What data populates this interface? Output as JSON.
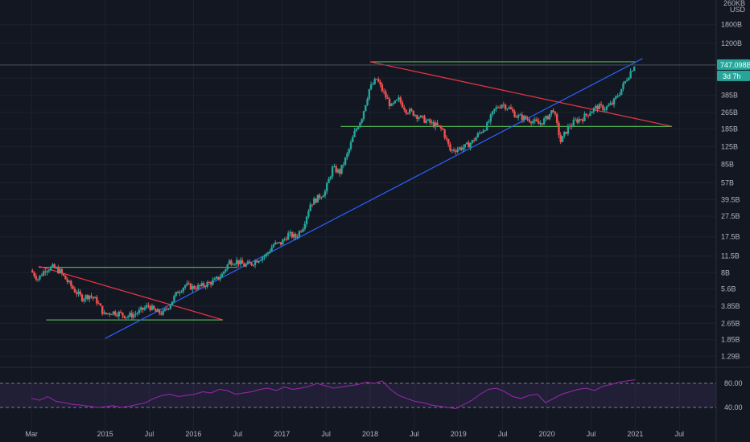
{
  "window": {
    "currency_top": "260KB",
    "currency": "USD"
  },
  "chart_data": {
    "type": "candlestick",
    "price_scale": "log",
    "y_ticks": [
      {
        "label": "1800B",
        "value": 1800
      },
      {
        "label": "1200B",
        "value": 1200
      },
      {
        "label": "560B",
        "value": 560
      },
      {
        "label": "385B",
        "value": 385
      },
      {
        "label": "265B",
        "value": 265
      },
      {
        "label": "185B",
        "value": 185
      },
      {
        "label": "125B",
        "value": 125
      },
      {
        "label": "85B",
        "value": 85
      },
      {
        "label": "57B",
        "value": 57
      },
      {
        "label": "39.5B",
        "value": 39.5
      },
      {
        "label": "27.5B",
        "value": 27.5
      },
      {
        "label": "17.5B",
        "value": 17.5
      },
      {
        "label": "11.5B",
        "value": 11.5
      },
      {
        "label": "8B",
        "value": 8
      },
      {
        "label": "5.6B",
        "value": 5.6
      },
      {
        "label": "3.85B",
        "value": 3.85
      },
      {
        "label": "2.65B",
        "value": 2.65
      },
      {
        "label": "1.85B",
        "value": 1.85
      },
      {
        "label": "1.29B",
        "value": 1.29
      }
    ],
    "x_ticks": [
      {
        "label": "Mar",
        "date": "2014-03"
      },
      {
        "label": "2015",
        "date": "2015-01"
      },
      {
        "label": "Jul",
        "date": "2015-07"
      },
      {
        "label": "2016",
        "date": "2016-01"
      },
      {
        "label": "Jul",
        "date": "2016-07"
      },
      {
        "label": "2017",
        "date": "2017-01"
      },
      {
        "label": "Jul",
        "date": "2017-07"
      },
      {
        "label": "2018",
        "date": "2018-01"
      },
      {
        "label": "Jul",
        "date": "2018-07"
      },
      {
        "label": "2019",
        "date": "2019-01"
      },
      {
        "label": "Jul",
        "date": "2019-07"
      },
      {
        "label": "2020",
        "date": "2020-01"
      },
      {
        "label": "Jul",
        "date": "2020-07"
      },
      {
        "label": "2021",
        "date": "2021-01"
      },
      {
        "label": "Jul",
        "date": "2021-07"
      }
    ],
    "x_range": [
      "2014-02",
      "2021-12"
    ],
    "y_range": [
      1.05,
      2500
    ],
    "current_price": {
      "label": "747.098B",
      "value": 747.1,
      "countdown": "3d 7h"
    },
    "price_path": [
      [
        "2014-03",
        8.4
      ],
      [
        "2014-04",
        7.0
      ],
      [
        "2014-05",
        8.6
      ],
      [
        "2014-06",
        9.0
      ],
      [
        "2014-07",
        8.2
      ],
      [
        "2014-08",
        6.6
      ],
      [
        "2014-09",
        5.4
      ],
      [
        "2014-10",
        4.6
      ],
      [
        "2014-11",
        4.9
      ],
      [
        "2014-12",
        4.3
      ],
      [
        "2015-01",
        3.2
      ],
      [
        "2015-02",
        3.4
      ],
      [
        "2015-03",
        3.3
      ],
      [
        "2015-04",
        3.1
      ],
      [
        "2015-05",
        3.2
      ],
      [
        "2015-06",
        3.5
      ],
      [
        "2015-07",
        3.9
      ],
      [
        "2015-08",
        3.4
      ],
      [
        "2015-09",
        3.3
      ],
      [
        "2015-10",
        4.1
      ],
      [
        "2015-11",
        5.3
      ],
      [
        "2015-12",
        6.1
      ],
      [
        "2016-01",
        5.8
      ],
      [
        "2016-02",
        5.9
      ],
      [
        "2016-03",
        6.3
      ],
      [
        "2016-04",
        6.7
      ],
      [
        "2016-05",
        7.7
      ],
      [
        "2016-06",
        10.2
      ],
      [
        "2016-07",
        10.3
      ],
      [
        "2016-08",
        9.4
      ],
      [
        "2016-09",
        9.8
      ],
      [
        "2016-10",
        10.9
      ],
      [
        "2016-11",
        11.8
      ],
      [
        "2016-12",
        14.8
      ],
      [
        "2017-01",
        15.2
      ],
      [
        "2017-02",
        18.5
      ],
      [
        "2017-03",
        17.4
      ],
      [
        "2017-04",
        22.0
      ],
      [
        "2017-05",
        36.0
      ],
      [
        "2017-06",
        41.0
      ],
      [
        "2017-07",
        47.0
      ],
      [
        "2017-08",
        78.0
      ],
      [
        "2017-09",
        72.0
      ],
      [
        "2017-10",
        105.0
      ],
      [
        "2017-11",
        170.0
      ],
      [
        "2017-12",
        240.0
      ],
      [
        "2018-01",
        440.0
      ],
      [
        "2018-02",
        550.0
      ],
      [
        "2018-03",
        400.0
      ],
      [
        "2018-04",
        300.0
      ],
      [
        "2018-05",
        350.0
      ],
      [
        "2018-06",
        280.0
      ],
      [
        "2018-07",
        260.0
      ],
      [
        "2018-08",
        235.0
      ],
      [
        "2018-09",
        215.0
      ],
      [
        "2018-10",
        200.0
      ],
      [
        "2018-11",
        180.0
      ],
      [
        "2018-12",
        115.0
      ],
      [
        "2019-01",
        120.0
      ],
      [
        "2019-02",
        125.0
      ],
      [
        "2019-03",
        140.0
      ],
      [
        "2019-04",
        170.0
      ],
      [
        "2019-05",
        200.0
      ],
      [
        "2019-06",
        280.0
      ],
      [
        "2019-07",
        320.0
      ],
      [
        "2019-08",
        290.0
      ],
      [
        "2019-09",
        245.0
      ],
      [
        "2019-10",
        235.0
      ],
      [
        "2019-11",
        225.0
      ],
      [
        "2019-12",
        205.0
      ],
      [
        "2020-01",
        230.0
      ],
      [
        "2020-02",
        285.0
      ],
      [
        "2020-03",
        140.0
      ],
      [
        "2020-04",
        190.0
      ],
      [
        "2020-05",
        220.0
      ],
      [
        "2020-06",
        235.0
      ],
      [
        "2020-07",
        270.0
      ],
      [
        "2020-08",
        300.0
      ],
      [
        "2020-09",
        290.0
      ],
      [
        "2020-10",
        320.0
      ],
      [
        "2020-11",
        410.0
      ],
      [
        "2020-12",
        560.0
      ],
      [
        "2021-01",
        747.1
      ]
    ],
    "drawings": [
      {
        "kind": "horizontal",
        "color": "#4caf50",
        "price": 9.0,
        "from": "2014-04",
        "to": "2016-07"
      },
      {
        "kind": "horizontal",
        "color": "#4caf50",
        "price": 2.85,
        "from": "2014-05",
        "to": "2016-05"
      },
      {
        "kind": "trend",
        "color": "#f23645",
        "p1": [
          "2014-04",
          9.2
        ],
        "p2": [
          "2016-05",
          2.85
        ]
      },
      {
        "kind": "horizontal",
        "color": "#4caf50",
        "price": 800,
        "from": "2018-01",
        "to": "2021-01"
      },
      {
        "kind": "horizontal",
        "color": "#4caf50",
        "price": 195,
        "from": "2017-09",
        "to": "2021-06"
      },
      {
        "kind": "trend",
        "color": "#f23645",
        "p1": [
          "2018-01",
          800
        ],
        "p2": [
          "2021-06",
          195
        ]
      },
      {
        "kind": "trend",
        "color": "#2962ff",
        "p1": [
          "2015-01",
          1.9
        ],
        "p2": [
          "2021-02",
          860
        ]
      }
    ],
    "rsi": {
      "upper": 80,
      "lower": 40,
      "tick_labels": [
        "80.00",
        "40.00"
      ],
      "values": [
        55,
        52,
        58,
        50,
        48,
        45,
        44,
        42,
        40,
        41,
        43,
        40,
        42,
        45,
        48,
        55,
        60,
        62,
        58,
        60,
        62,
        66,
        64,
        70,
        68,
        62,
        64,
        66,
        70,
        72,
        68,
        74,
        70,
        72,
        75,
        80,
        76,
        72,
        74,
        76,
        78,
        82,
        80,
        84,
        70,
        60,
        55,
        50,
        48,
        44,
        42,
        40,
        38,
        45,
        52,
        62,
        70,
        72,
        66,
        58,
        55,
        60,
        62,
        48,
        55,
        62,
        66,
        70,
        72,
        68,
        75,
        78,
        82,
        84,
        86
      ]
    }
  }
}
